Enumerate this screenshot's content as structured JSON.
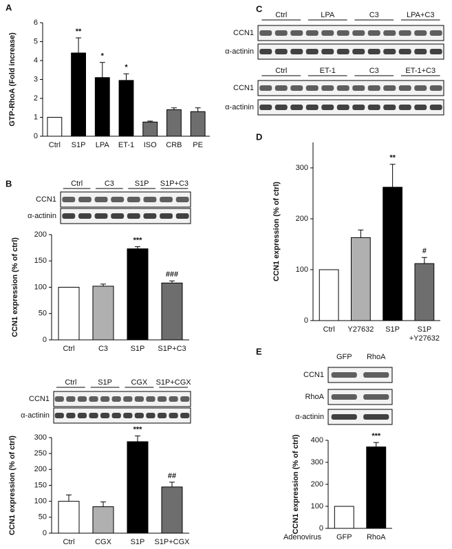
{
  "panel_labels": [
    "A",
    "B",
    "C",
    "D",
    "E"
  ],
  "chart_data": [
    {
      "type": "bar",
      "y_label": "GTP-RhoA (Fold increase)",
      "categories": [
        "Ctrl",
        "S1P",
        "LPA",
        "ET-1",
        "ISO",
        "CRB",
        "PE"
      ],
      "values": [
        1,
        4.4,
        3.1,
        2.95,
        0.75,
        1.4,
        1.3
      ],
      "errors": [
        null,
        0.8,
        0.8,
        0.35,
        0.05,
        0.1,
        0.2
      ],
      "colors": [
        "#ffffff",
        "#000000",
        "#000000",
        "#000000",
        "#6e6e6e",
        "#6e6e6e",
        "#6e6e6e"
      ],
      "annotations": [
        null,
        "**",
        "*",
        "*",
        null,
        null,
        null
      ],
      "ylim": [
        0,
        6
      ],
      "yticks": [
        0,
        1,
        2,
        3,
        4,
        5,
        6
      ]
    },
    {
      "type": "bar",
      "y_label": "CCN1 expression (% of ctrl)",
      "categories": [
        "Ctrl",
        "C3",
        "S1P",
        "S1P+C3"
      ],
      "values": [
        100,
        102,
        173,
        108
      ],
      "errors": [
        null,
        4,
        4,
        4
      ],
      "colors": [
        "#ffffff",
        "#b0b0b0",
        "#000000",
        "#6e6e6e"
      ],
      "annotations": [
        null,
        null,
        "***",
        "###"
      ],
      "ylim": [
        0,
        200
      ],
      "yticks": [
        0,
        50,
        100,
        150,
        200
      ]
    },
    {
      "type": "bar",
      "y_label": "CCN1 expression (% of ctrl)",
      "categories": [
        "Ctrl",
        "CGX",
        "S1P",
        "S1P+CGX"
      ],
      "values": [
        100,
        83,
        287,
        145
      ],
      "errors": [
        20,
        15,
        18,
        15
      ],
      "colors": [
        "#ffffff",
        "#b0b0b0",
        "#000000",
        "#6e6e6e"
      ],
      "annotations": [
        null,
        null,
        "***",
        "##"
      ],
      "ylim": [
        0,
        300
      ],
      "yticks": [
        0,
        50,
        100,
        150,
        200,
        250,
        300
      ]
    },
    {
      "type": "bar",
      "y_label": "CCN1 expression (% of ctrl)",
      "categories": [
        "Ctrl",
        "Y27632",
        "S1P",
        "S1P +Y27632"
      ],
      "values": [
        100,
        163,
        262,
        112
      ],
      "errors": [
        null,
        15,
        45,
        12
      ],
      "colors": [
        "#ffffff",
        "#b0b0b0",
        "#000000",
        "#6e6e6e"
      ],
      "annotations": [
        null,
        null,
        "**",
        "#"
      ],
      "ylim": [
        0,
        350
      ],
      "yticks": [
        0,
        100,
        200,
        300
      ]
    },
    {
      "type": "bar",
      "y_label": "CCN1 expression (% of ctrl)",
      "x_label": "Adenovirus",
      "categories": [
        "GFP",
        "RhoA"
      ],
      "values": [
        100,
        370
      ],
      "errors": [
        null,
        20
      ],
      "colors": [
        "#ffffff",
        "#000000"
      ],
      "annotations": [
        null,
        "***"
      ],
      "ylim": [
        0,
        400
      ],
      "yticks": [
        0,
        100,
        200,
        300,
        400
      ]
    }
  ],
  "blots": [
    {
      "groups": [
        "Ctrl",
        "LPA",
        "C3",
        "LPA+C3"
      ],
      "rows": [
        "CCN1",
        "α-actinin"
      ]
    },
    {
      "groups": [
        "Ctrl",
        "ET-1",
        "C3",
        "ET-1+C3"
      ],
      "rows": [
        "CCN1",
        "α-actinin"
      ]
    },
    {
      "groups": [
        "Ctrl",
        "C3",
        "S1P",
        "S1P+C3"
      ],
      "rows": [
        "CCN1",
        "α-actinin"
      ]
    },
    {
      "groups": [
        "Ctrl",
        "S1P",
        "CGX",
        "S1P+CGX"
      ],
      "rows": [
        "CCN1",
        "α-actinin"
      ]
    },
    {
      "groups": [
        "GFP",
        "RhoA"
      ],
      "rows": [
        "CCN1",
        "RhoA",
        "α-actinin"
      ]
    }
  ]
}
